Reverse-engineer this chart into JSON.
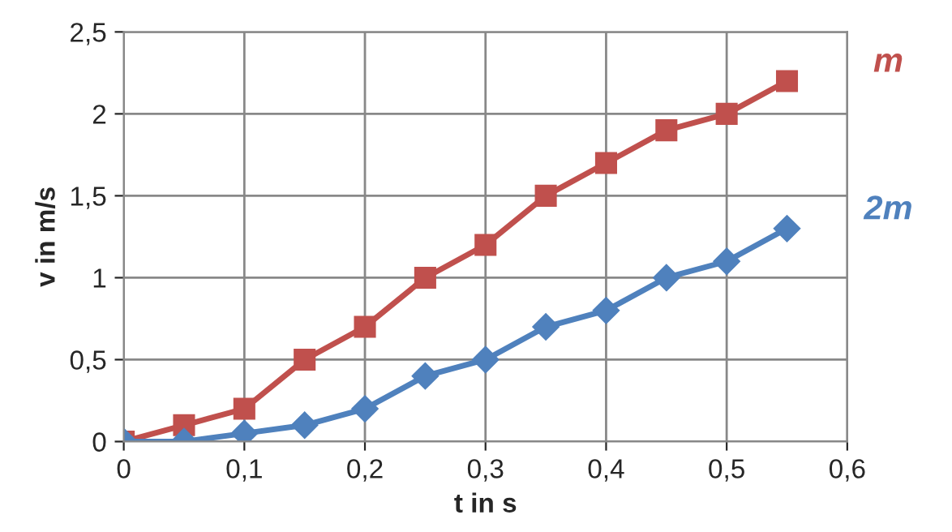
{
  "chart_data": {
    "type": "line",
    "xlabel": "t in s",
    "ylabel": "v in m/s",
    "x": [
      0,
      0.05,
      0.1,
      0.15,
      0.2,
      0.25,
      0.3,
      0.35,
      0.4,
      0.45,
      0.5,
      0.55
    ],
    "series": [
      {
        "name": "m",
        "color": "#c0504d",
        "marker": "square",
        "values": [
          0,
          0.1,
          0.2,
          0.5,
          0.7,
          1.0,
          1.2,
          1.5,
          1.7,
          1.9,
          2.0,
          2.2
        ]
      },
      {
        "name": "2m",
        "color": "#4f81bd",
        "marker": "diamond",
        "values": [
          0,
          0,
          0.05,
          0.1,
          0.2,
          0.4,
          0.5,
          0.7,
          0.8,
          1.0,
          1.1,
          1.3
        ]
      }
    ],
    "xlim": [
      0,
      0.6
    ],
    "ylim": [
      0,
      2.5
    ],
    "xticks": [
      0,
      {
        "value": 0.1,
        "label": "0,1"
      },
      {
        "value": 0.2,
        "label": "0,2"
      },
      {
        "value": 0.3,
        "label": "0,3"
      },
      {
        "value": 0.4,
        "label": "0,4"
      },
      {
        "value": 0.5,
        "label": "0,5"
      },
      {
        "value": 0.6,
        "label": "0,6"
      }
    ],
    "yticks": [
      0,
      {
        "value": 0.5,
        "label": "0,5"
      },
      1,
      {
        "value": 1.5,
        "label": "1,5"
      },
      2,
      {
        "value": 2.5,
        "label": "2,5"
      }
    ],
    "grid": true,
    "legend": "right",
    "line_style": "solid"
  }
}
